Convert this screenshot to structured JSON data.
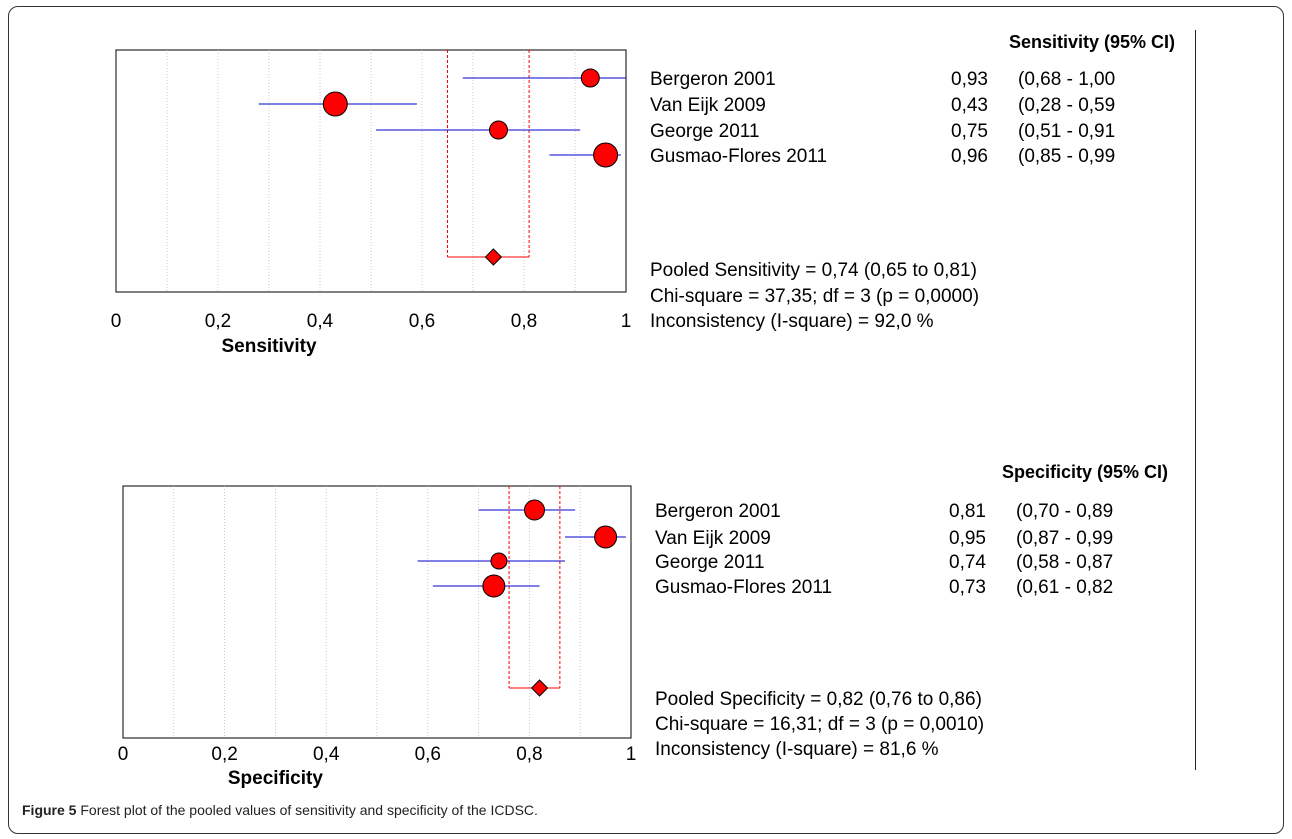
{
  "caption": {
    "label": "Figure 5",
    "text": "Forest plot of the pooled values of sensitivity and specificity of the ICDSC."
  },
  "colors": {
    "marker_fill": "#ff0000",
    "ci_line": "#0000cc",
    "pooled_line": "#ff0000",
    "grid": "#bbbbbb",
    "axis": "#000000"
  },
  "chart_data": [
    {
      "type": "forest",
      "xlabel": "Sensitivity",
      "xlim": [
        0,
        1
      ],
      "xticks": [
        "0",
        "0,2",
        "0,4",
        "0,6",
        "0,8",
        "1"
      ],
      "vertical_gridlines": [
        0.1,
        0.2,
        0.3,
        0.4,
        0.5,
        0.6,
        0.7,
        0.8,
        0.9
      ],
      "table_header": "Sensitivity (95% CI)",
      "studies": [
        {
          "name": "Bergeron  2001",
          "estimate": 0.93,
          "ci": [
            0.68,
            1.0
          ],
          "value_label": "0,93",
          "ci_label": "(0,68 - 1,00"
        },
        {
          "name": "Van Eijk 2009",
          "estimate": 0.43,
          "ci": [
            0.28,
            0.59
          ],
          "value_label": "0,43",
          "ci_label": "(0,28 - 0,59"
        },
        {
          "name": "George 2011",
          "estimate": 0.75,
          "ci": [
            0.51,
            0.91
          ],
          "value_label": "0,75",
          "ci_label": "(0,51 - 0,91"
        },
        {
          "name": "Gusmao-Flores  2011",
          "estimate": 0.96,
          "ci": [
            0.85,
            0.99
          ],
          "value_label": "0,96",
          "ci_label": "(0,85 - 0,99"
        }
      ],
      "pooled": {
        "estimate": 0.74,
        "ci": [
          0.65,
          0.81
        ]
      },
      "summary": [
        "Pooled Sensitivity = 0,74 (0,65 to 0,81)",
        "Chi-square = 37,35; df =  3 (p = 0,0000)",
        "Inconsistency (I-square) = 92,0 %"
      ]
    },
    {
      "type": "forest",
      "xlabel": "Specificity",
      "xlim": [
        0,
        1
      ],
      "xticks": [
        "0",
        "0,2",
        "0,4",
        "0,6",
        "0,8",
        "1"
      ],
      "vertical_gridlines": [
        0.1,
        0.2,
        0.3,
        0.4,
        0.5,
        0.6,
        0.7,
        0.8,
        0.9
      ],
      "table_header": "Specificity (95% CI)",
      "studies": [
        {
          "name": "Bergeron  2001",
          "estimate": 0.81,
          "ci": [
            0.7,
            0.89
          ],
          "value_label": "0,81",
          "ci_label": "(0,70 - 0,89"
        },
        {
          "name": "Van Eijk 2009",
          "estimate": 0.95,
          "ci": [
            0.87,
            0.99
          ],
          "value_label": "0,95",
          "ci_label": "(0,87 - 0,99"
        },
        {
          "name": "George 2011",
          "estimate": 0.74,
          "ci": [
            0.58,
            0.87
          ],
          "value_label": "0,74",
          "ci_label": "(0,58 - 0,87"
        },
        {
          "name": "Gusmao-Flores  2011",
          "estimate": 0.73,
          "ci": [
            0.61,
            0.82
          ],
          "value_label": "0,73",
          "ci_label": "(0,61 - 0,82"
        }
      ],
      "pooled": {
        "estimate": 0.82,
        "ci": [
          0.76,
          0.86
        ]
      },
      "summary": [
        "Pooled Specificity = 0,82 (0,76 to 0,86)",
        "Chi-square = 16,31; df =  3 (p = 0,0010)",
        "Inconsistency (I-square) = 81,6 %"
      ]
    }
  ]
}
